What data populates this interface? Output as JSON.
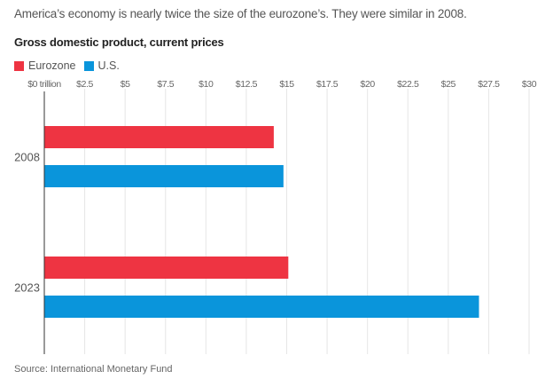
{
  "chart_data": {
    "type": "bar",
    "orientation": "horizontal",
    "subtitle": "America’s economy is nearly twice the size of the eurozone’s. They were similar in 2008.",
    "title": "Gross domestic product, current prices",
    "xlabel": "",
    "ylabel": "",
    "categories": [
      "2008",
      "2023"
    ],
    "series": [
      {
        "name": "Eurozone",
        "color": "#ee3442",
        "values": [
          14.2,
          15.1
        ]
      },
      {
        "name": "U.S.",
        "color": "#0a95db",
        "values": [
          14.8,
          26.9
        ]
      }
    ],
    "xlim": [
      0,
      30
    ],
    "x_ticks": [
      0,
      2.5,
      5,
      7.5,
      10,
      12.5,
      15,
      17.5,
      20,
      22.5,
      25,
      27.5,
      30
    ],
    "x_tick_labels": [
      "$0 trillion",
      "$2.5",
      "$5",
      "$7.5",
      "$10",
      "$12.5",
      "$15",
      "$17.5",
      "$20",
      "$22.5",
      "$25",
      "$27.5",
      "$30"
    ],
    "grid": true,
    "legend_position": "top-left",
    "source": "Source: International Monetary Fund"
  }
}
